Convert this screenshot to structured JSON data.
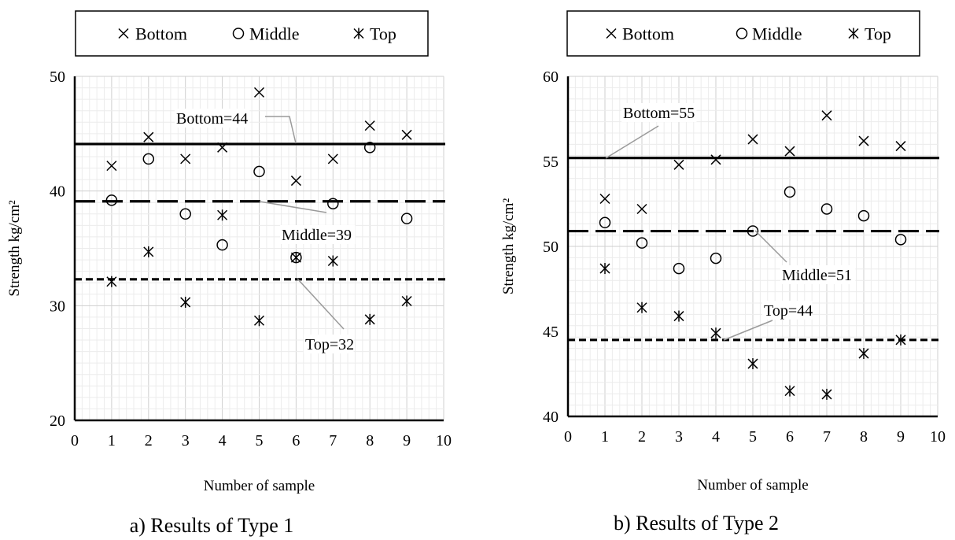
{
  "chart_data": [
    {
      "type": "scatter",
      "panel": "a",
      "caption": "a) Results of Type 1",
      "xlabel": "Number of sample",
      "ylabel": "Strength kg/cm²",
      "xlim": [
        0,
        10
      ],
      "ylim": [
        20,
        50
      ],
      "xticks": [
        0,
        1,
        2,
        3,
        4,
        5,
        6,
        7,
        8,
        9,
        10
      ],
      "yticks": [
        20,
        30,
        40,
        50
      ],
      "grid": true,
      "legend_position": "top",
      "series": [
        {
          "name": "Bottom",
          "marker": "x",
          "x": [
            1,
            2,
            3,
            4,
            5,
            6,
            7,
            8,
            9
          ],
          "y": [
            42.2,
            44.7,
            42.8,
            43.8,
            48.6,
            40.9,
            42.8,
            45.7,
            44.9
          ]
        },
        {
          "name": "Middle",
          "marker": "circle",
          "x": [
            1,
            2,
            3,
            4,
            5,
            6,
            7,
            8,
            9
          ],
          "y": [
            39.2,
            42.8,
            38.0,
            35.3,
            41.7,
            34.2,
            38.9,
            43.8,
            37.6
          ]
        },
        {
          "name": "Top",
          "marker": "asterisk",
          "x": [
            1,
            2,
            3,
            4,
            5,
            6,
            7,
            8,
            9
          ],
          "y": [
            32.1,
            34.7,
            30.3,
            37.9,
            28.7,
            34.2,
            33.9,
            28.8,
            30.4
          ]
        }
      ],
      "reference_lines": [
        {
          "series": "Bottom",
          "value": 44.1,
          "style": "solid",
          "label": "Bottom=44"
        },
        {
          "series": "Middle",
          "value": 39.1,
          "style": "longdash",
          "label": "Middle=39"
        },
        {
          "series": "Top",
          "value": 32.3,
          "style": "dashed",
          "label": "Top=32"
        }
      ]
    },
    {
      "type": "scatter",
      "panel": "b",
      "caption": "b) Results of Type 2",
      "xlabel": "Number of sample",
      "ylabel": "Strength kg/cm²",
      "xlim": [
        0,
        10
      ],
      "ylim": [
        40,
        60
      ],
      "xticks": [
        0,
        1,
        2,
        3,
        4,
        5,
        6,
        7,
        8,
        9,
        10
      ],
      "yticks": [
        40,
        45,
        50,
        55,
        60
      ],
      "grid": true,
      "legend_position": "top",
      "series": [
        {
          "name": "Bottom",
          "marker": "x",
          "x": [
            1,
            2,
            3,
            4,
            5,
            6,
            7,
            8,
            9
          ],
          "y": [
            52.8,
            52.2,
            54.8,
            55.1,
            56.3,
            55.6,
            57.7,
            56.2,
            55.9
          ]
        },
        {
          "name": "Middle",
          "marker": "circle",
          "x": [
            1,
            2,
            3,
            4,
            5,
            6,
            7,
            8,
            9
          ],
          "y": [
            51.4,
            50.2,
            48.7,
            49.3,
            50.9,
            53.2,
            52.2,
            51.8,
            50.4
          ]
        },
        {
          "name": "Top",
          "marker": "asterisk",
          "x": [
            1,
            2,
            3,
            4,
            5,
            6,
            7,
            8,
            9
          ],
          "y": [
            48.7,
            46.4,
            45.9,
            44.9,
            43.1,
            41.5,
            41.3,
            43.7,
            44.5
          ]
        }
      ],
      "reference_lines": [
        {
          "series": "Bottom",
          "value": 55.2,
          "style": "solid",
          "label": "Bottom=55"
        },
        {
          "series": "Middle",
          "value": 50.9,
          "style": "longdash",
          "label": "Middle=51"
        },
        {
          "series": "Top",
          "value": 44.5,
          "style": "dashed",
          "label": "Top=44"
        }
      ]
    }
  ]
}
